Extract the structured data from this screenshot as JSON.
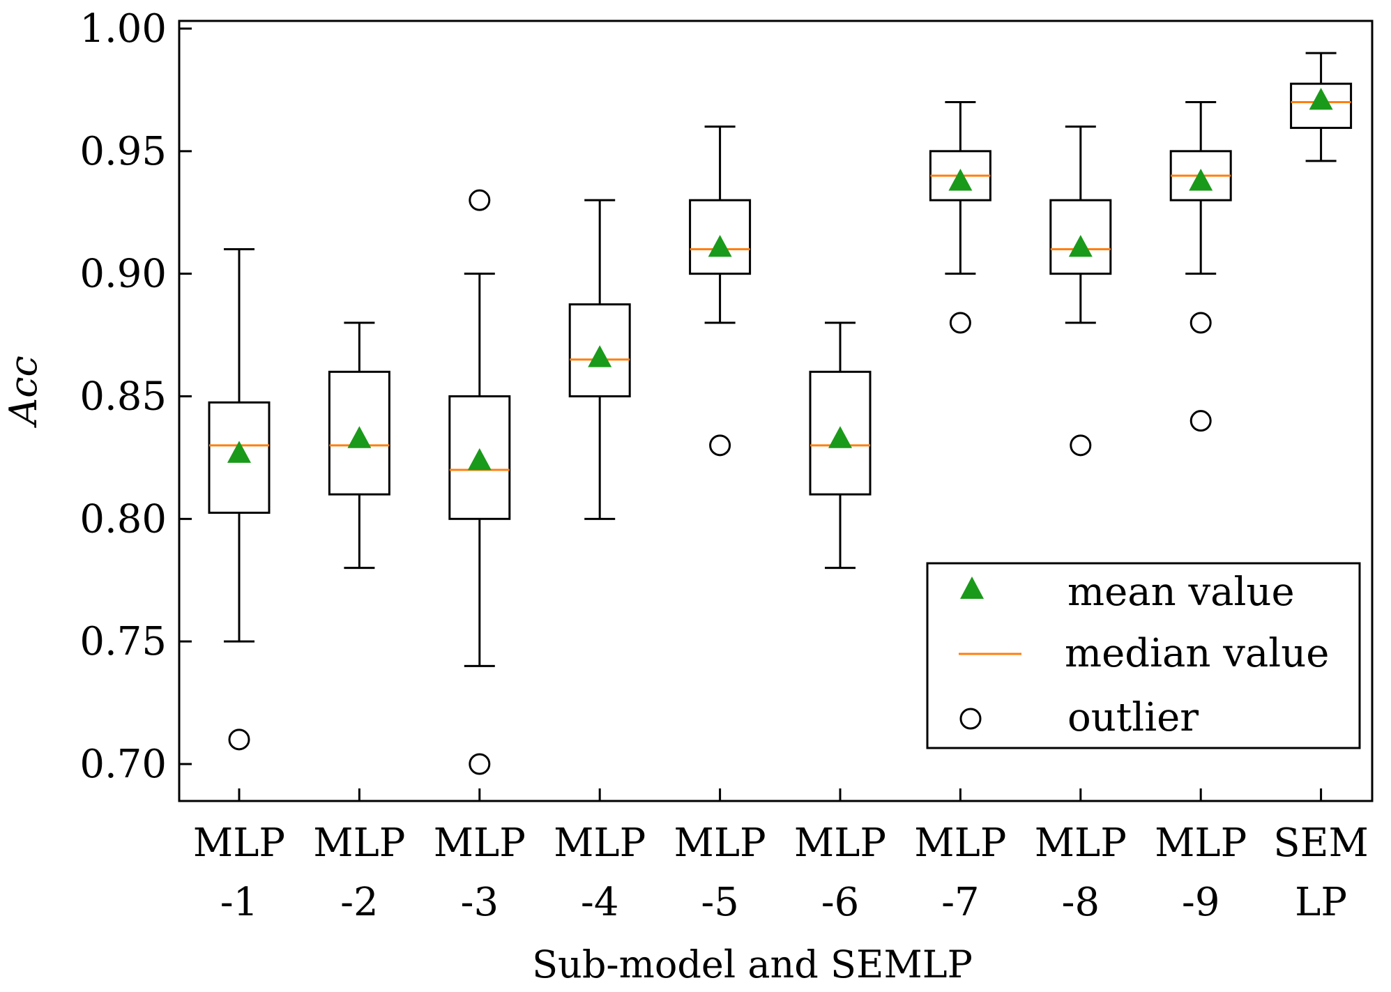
{
  "chart_data": {
    "type": "box",
    "title": "",
    "xlabel": "Sub-model and SEMLP",
    "ylabel": "Acc",
    "ylim": [
      0.685,
      1.0
    ],
    "yticks": [
      "0.70",
      "0.75",
      "0.80",
      "0.85",
      "0.90",
      "0.95",
      "1.00"
    ],
    "categories": [
      {
        "line1": "MLP",
        "line2": "-1"
      },
      {
        "line1": "MLP",
        "line2": "-2"
      },
      {
        "line1": "MLP",
        "line2": "-3"
      },
      {
        "line1": "MLP",
        "line2": "-4"
      },
      {
        "line1": "MLP",
        "line2": "-5"
      },
      {
        "line1": "MLP",
        "line2": "-6"
      },
      {
        "line1": "MLP",
        "line2": "-7"
      },
      {
        "line1": "MLP",
        "line2": "-8"
      },
      {
        "line1": "MLP",
        "line2": "-9"
      },
      {
        "line1": "SEM",
        "line2": "LP"
      }
    ],
    "boxes": [
      {
        "whisker_low": 0.75,
        "q1": 0.8025,
        "median": 0.83,
        "q3": 0.8475,
        "whisker_high": 0.91,
        "mean": 0.827,
        "outliers": [
          0.71
        ]
      },
      {
        "whisker_low": 0.78,
        "q1": 0.81,
        "median": 0.83,
        "q3": 0.86,
        "whisker_high": 0.88,
        "mean": 0.833,
        "outliers": []
      },
      {
        "whisker_low": 0.74,
        "q1": 0.8,
        "median": 0.82,
        "q3": 0.85,
        "whisker_high": 0.9,
        "mean": 0.824,
        "outliers": [
          0.93,
          0.7
        ]
      },
      {
        "whisker_low": 0.8,
        "q1": 0.85,
        "median": 0.865,
        "q3": 0.8875,
        "whisker_high": 0.93,
        "mean": 0.866,
        "outliers": []
      },
      {
        "whisker_low": 0.88,
        "q1": 0.9,
        "median": 0.91,
        "q3": 0.93,
        "whisker_high": 0.96,
        "mean": 0.911,
        "outliers": [
          0.83
        ]
      },
      {
        "whisker_low": 0.78,
        "q1": 0.81,
        "median": 0.83,
        "q3": 0.86,
        "whisker_high": 0.88,
        "mean": 0.833,
        "outliers": []
      },
      {
        "whisker_low": 0.9,
        "q1": 0.93,
        "median": 0.94,
        "q3": 0.95,
        "whisker_high": 0.97,
        "mean": 0.938,
        "outliers": [
          0.88
        ]
      },
      {
        "whisker_low": 0.88,
        "q1": 0.9,
        "median": 0.91,
        "q3": 0.93,
        "whisker_high": 0.96,
        "mean": 0.911,
        "outliers": [
          0.83
        ]
      },
      {
        "whisker_low": 0.9,
        "q1": 0.93,
        "median": 0.94,
        "q3": 0.95,
        "whisker_high": 0.97,
        "mean": 0.938,
        "outliers": [
          0.88,
          0.84
        ]
      },
      {
        "whisker_low": 0.946,
        "q1": 0.9595,
        "median": 0.97,
        "q3": 0.9775,
        "whisker_high": 0.99,
        "mean": 0.971,
        "outliers": []
      }
    ],
    "legend": {
      "position": "bottom-right",
      "items": [
        {
          "marker": "triangle",
          "label": "mean value"
        },
        {
          "marker": "line",
          "label": "median value"
        },
        {
          "marker": "circle",
          "label": "outlier"
        }
      ]
    },
    "colors": {
      "mean": "#1a9a1a",
      "median": "#ff7f0e",
      "box": "#000000"
    }
  }
}
